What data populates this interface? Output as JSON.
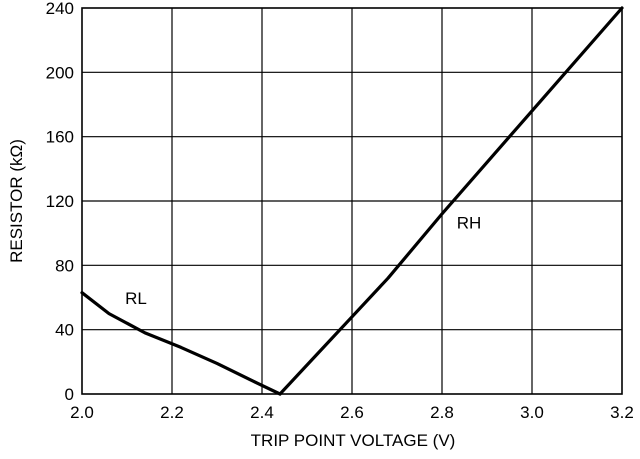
{
  "chart_data": {
    "type": "line",
    "title": "",
    "xlabel": "TRIP POINT VOLTAGE (V)",
    "ylabel": "RESISTOR (kΩ)",
    "xlim": [
      2.0,
      3.2
    ],
    "ylim": [
      0,
      240
    ],
    "x_ticks": [
      2.0,
      2.2,
      2.4,
      2.6,
      2.8,
      3.0,
      3.2
    ],
    "x_tick_labels": [
      "2.0",
      "2.2",
      "2.4",
      "2.6",
      "2.8",
      "3.0",
      "3.2"
    ],
    "y_ticks": [
      0,
      40,
      80,
      120,
      160,
      200,
      240
    ],
    "y_tick_labels": [
      "0",
      "40",
      "80",
      "120",
      "160",
      "200",
      "240"
    ],
    "grid": true,
    "line_color": "#000000",
    "series": [
      {
        "name": "RL",
        "x": [
          2.0,
          2.06,
          2.14,
          2.22,
          2.3,
          2.38,
          2.44
        ],
        "y": [
          63,
          50,
          38,
          29,
          19,
          8,
          0
        ]
      },
      {
        "name": "RH",
        "x": [
          2.44,
          2.52,
          2.6,
          2.68,
          2.8,
          3.0,
          3.2
        ],
        "y": [
          0,
          24,
          48,
          72,
          112,
          176,
          240
        ]
      }
    ],
    "annotations": [
      {
        "text": "RL",
        "x": 2.12,
        "y": 56
      },
      {
        "text": "RH",
        "x": 2.86,
        "y": 103
      }
    ]
  }
}
